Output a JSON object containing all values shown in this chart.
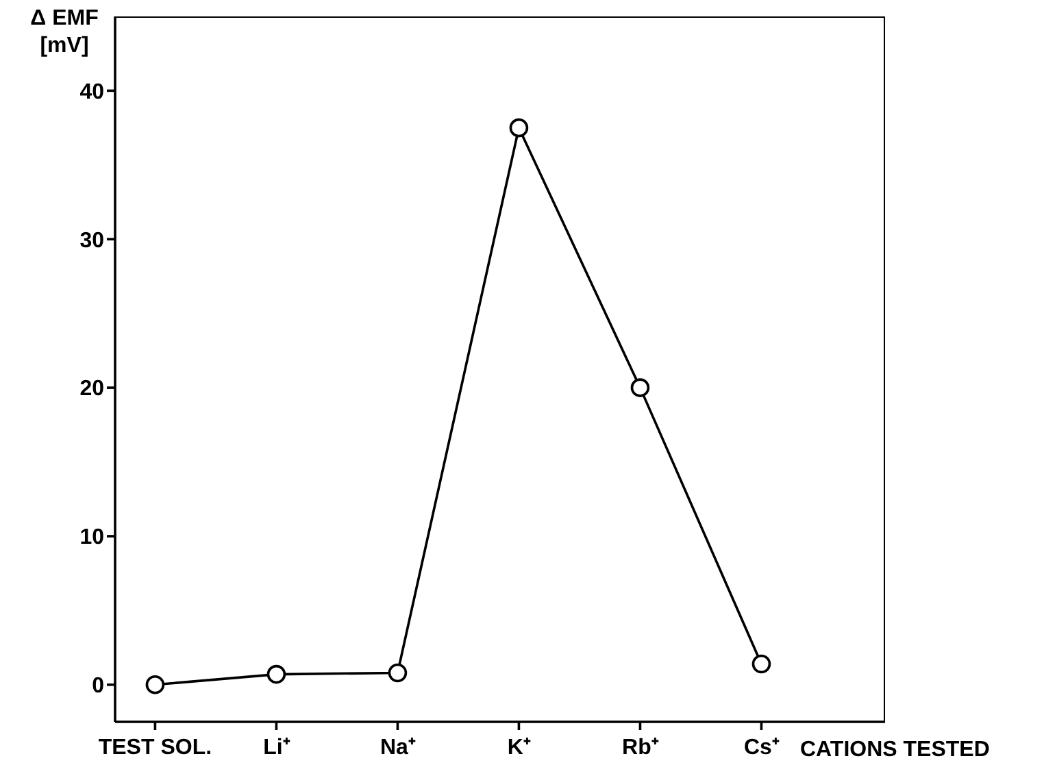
{
  "chart_data": {
    "type": "line",
    "ylabel": "Δ EMF [mV]",
    "xlabel": "CATIONS TESTED",
    "categories": [
      "TEST SOL.",
      "Li⁺",
      "Na⁺",
      "K⁺",
      "Rb⁺",
      "Cs⁺"
    ],
    "series": [
      {
        "color": "#000000",
        "values": [
          0,
          0.7,
          0.8,
          37.5,
          20,
          1.4
        ]
      }
    ],
    "ylim": [
      -2.5,
      45
    ],
    "yticks": [
      0,
      10,
      20,
      30,
      40
    ],
    "marker": "circle",
    "line_style": "solid"
  }
}
